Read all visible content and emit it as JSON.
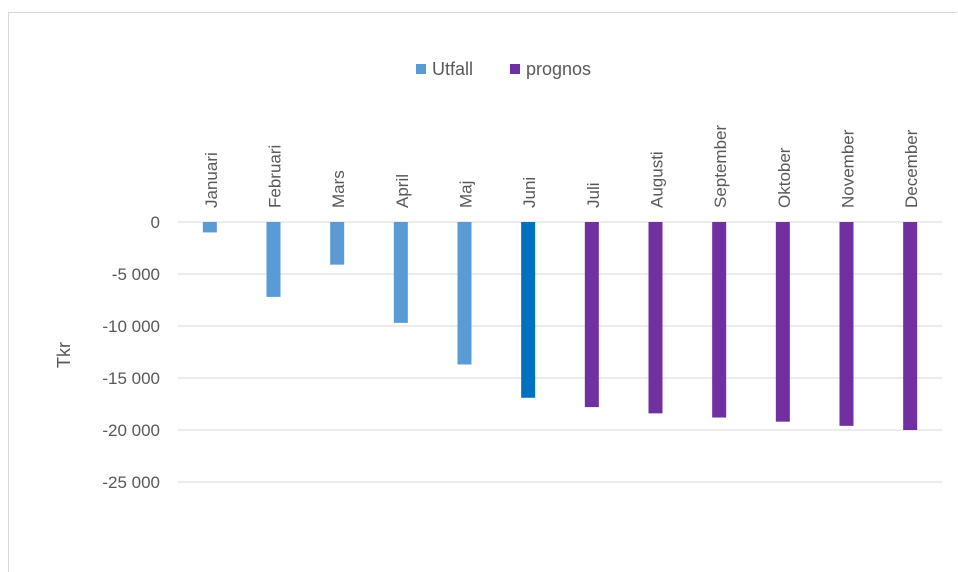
{
  "chart_data": {
    "type": "bar",
    "title": "",
    "xlabel": "",
    "ylabel": "Tkr",
    "ylim": [
      -25000,
      0
    ],
    "y_ticks": [
      0,
      -5000,
      -10000,
      -15000,
      -20000,
      -25000
    ],
    "y_tick_labels": [
      "0",
      "-5 000",
      "-10 000",
      "-15 000",
      "-20 000",
      "-25 000"
    ],
    "categories": [
      "Januari",
      "Februari",
      "Mars",
      "April",
      "Maj",
      "Juni",
      "Juli",
      "Augusti",
      "September",
      "Oktober",
      "November",
      "December"
    ],
    "series": [
      {
        "name": "Utfall",
        "values": [
          -1000,
          -7200,
          -4100,
          -9700,
          -13700,
          -16900,
          null,
          null,
          null,
          null,
          null,
          null
        ]
      },
      {
        "name": "prognos",
        "values": [
          null,
          null,
          null,
          null,
          null,
          null,
          -17800,
          -18400,
          -18800,
          -19200,
          -19600,
          -20000
        ]
      }
    ],
    "legend_position": "top",
    "grid": true,
    "x_labels_position": "top-rotated",
    "colors": {
      "Utfall": "#5b9bd5",
      "Utfall_highlight": "#0070c0",
      "prognos": "#7030a0",
      "grid": "#d9d9d9",
      "text": "#595959"
    },
    "highlighted_category": "Juni"
  }
}
